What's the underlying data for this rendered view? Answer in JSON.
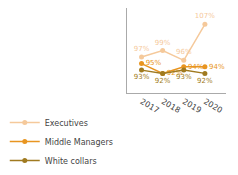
{
  "chart_data": {
    "type": "line",
    "x": [
      2017,
      2018,
      2019,
      2020
    ],
    "xlim": [
      2016.3,
      2021
    ],
    "xticks": [
      2017,
      2018,
      2019,
      2020
    ],
    "ylim": [
      86,
      112
    ],
    "tick_labels": "x",
    "grid": false,
    "legend": "bottom",
    "data_labels": true,
    "marker": "circle",
    "series": [
      {
        "name": "Executives",
        "color": "#f5c99b",
        "values": [
          97,
          99,
          96,
          107
        ],
        "value_labels": [
          "97%",
          "99%",
          "96%",
          "107%"
        ]
      },
      {
        "name": "Middle Managers",
        "color": "#e89520",
        "values": [
          95,
          92,
          94,
          94
        ],
        "value_labels": [
          "95%",
          "92%",
          "94%",
          "94%"
        ]
      },
      {
        "name": "White collars",
        "color": "#a07a20",
        "values": [
          93,
          92,
          93,
          92
        ],
        "value_labels": [
          "93%",
          "92%",
          "93%",
          "92%"
        ]
      }
    ]
  }
}
